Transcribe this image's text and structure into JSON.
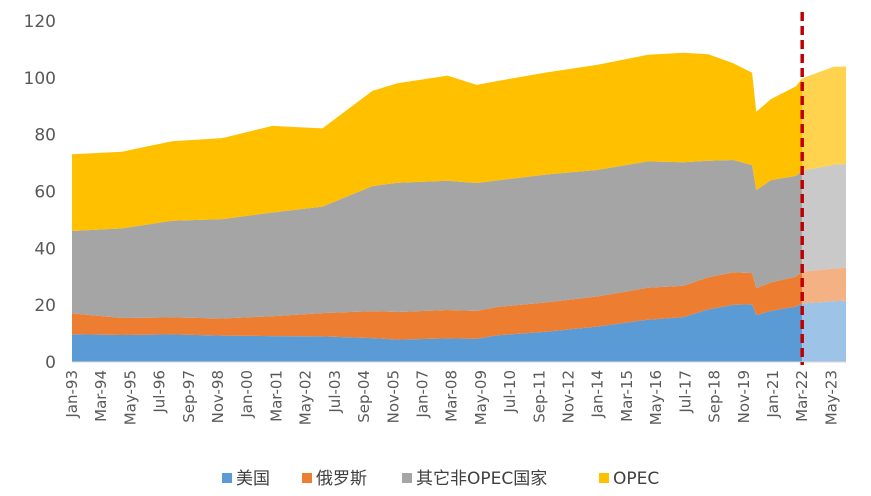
{
  "chart_data": {
    "type": "area",
    "stacked": true,
    "ylim": [
      0,
      120
    ],
    "yticks": [
      0,
      20,
      40,
      60,
      80,
      100,
      120
    ],
    "grid": false,
    "legend_position": "bottom",
    "forecast_line": {
      "x": "2022-03",
      "color": "#C00000",
      "style": "dashed"
    },
    "x_tick_labels": [
      "Jan-93",
      "Mar-94",
      "May-95",
      "Jul-96",
      "Sep-97",
      "Nov-98",
      "Jan-00",
      "Mar-01",
      "May-02",
      "Jul-03",
      "Sep-04",
      "Nov-05",
      "Jan-07",
      "Mar-08",
      "May-09",
      "Jul-10",
      "Sep-11",
      "Nov-12",
      "Jan-14",
      "Mar-15",
      "May-16",
      "Jul-17",
      "Sep-18",
      "Nov-19",
      "Jan-21",
      "Mar-22",
      "May-23"
    ],
    "x": [
      "1993-01",
      "1995-01",
      "1997-01",
      "1999-01",
      "2001-01",
      "2003-01",
      "2005-01",
      "2006-01",
      "2008-01",
      "2009-03",
      "2010-01",
      "2012-01",
      "2014-01",
      "2016-01",
      "2017-06",
      "2018-06",
      "2019-06",
      "2020-03",
      "2020-05",
      "2020-12",
      "2021-12",
      "2022-03",
      "2023-06",
      "2023-12"
    ],
    "series": [
      {
        "name": "美国",
        "color": "#5B9BD5",
        "forecast_color": "#9DC3E6",
        "values": [
          9.8,
          9.5,
          9.7,
          9.3,
          9.1,
          9.0,
          8.4,
          7.9,
          8.3,
          8.2,
          9.4,
          10.7,
          12.5,
          14.9,
          15.8,
          18.5,
          20.1,
          20.3,
          16.5,
          18.0,
          19.5,
          20.6,
          21.4,
          21.6
        ]
      },
      {
        "name": "俄罗斯",
        "color": "#ED7D31",
        "forecast_color": "#F4B183",
        "values": [
          7.3,
          6.0,
          6.0,
          6.0,
          7.0,
          8.2,
          9.5,
          9.7,
          10.0,
          9.8,
          10.0,
          10.3,
          10.6,
          11.2,
          11.0,
          11.3,
          11.5,
          11.0,
          9.5,
          10.0,
          10.5,
          11.2,
          11.5,
          11.6
        ]
      },
      {
        "name": "其它非OPEC国家",
        "color": "#A5A5A5",
        "forecast_color": "#C9C9C9",
        "values": [
          29.0,
          31.5,
          34.0,
          35.0,
          36.5,
          37.5,
          44.0,
          45.5,
          45.5,
          45.0,
          44.5,
          45.0,
          44.5,
          44.5,
          43.5,
          41.0,
          39.5,
          38.0,
          34.5,
          36.0,
          35.5,
          35.5,
          36.5,
          36.5
        ]
      },
      {
        "name": "OPEC",
        "color": "#FFC000",
        "forecast_color": "#FFD34D",
        "values": [
          27.0,
          27.0,
          28.0,
          28.5,
          30.5,
          27.5,
          33.5,
          35.0,
          37.0,
          34.5,
          35.0,
          36.0,
          37.0,
          37.5,
          38.5,
          37.5,
          34.0,
          32.5,
          27.5,
          28.5,
          31.5,
          32.5,
          34.5,
          34.3
        ]
      }
    ]
  }
}
